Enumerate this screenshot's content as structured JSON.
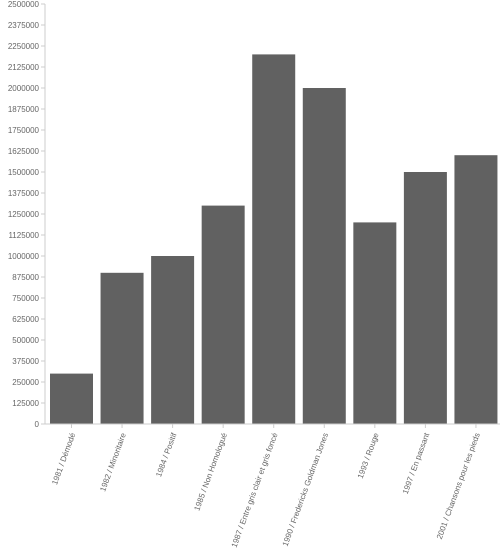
{
  "chart_data": {
    "type": "bar",
    "categories": [
      "1981 / Démodé",
      "1982 / Minoritaire",
      "1984 / Positif",
      "1985 / Non Homologué",
      "1987 / Entre gris clair et gris foncé",
      "1990 / Fredericks Goldman Jones",
      "1993 / Rouge",
      "1997 / En passant",
      "2001 / Chansons pour les pieds"
    ],
    "values": [
      300000,
      900000,
      1000000,
      1300000,
      2200000,
      2000000,
      1200000,
      1500000,
      1600000
    ],
    "ylim": [
      0,
      2500000
    ],
    "yticks": [
      0,
      125000,
      250000,
      375000,
      500000,
      625000,
      750000,
      875000,
      1000000,
      1125000,
      1250000,
      1375000,
      1500000,
      1625000,
      1750000,
      1875000,
      2000000,
      2125000,
      2250000,
      2375000,
      2500000
    ],
    "title": "",
    "xlabel": "",
    "ylabel": "",
    "grid": false,
    "legend": "none",
    "bar_color": "#616161",
    "axis_color": "#cccccc",
    "text_color": "#666666"
  }
}
